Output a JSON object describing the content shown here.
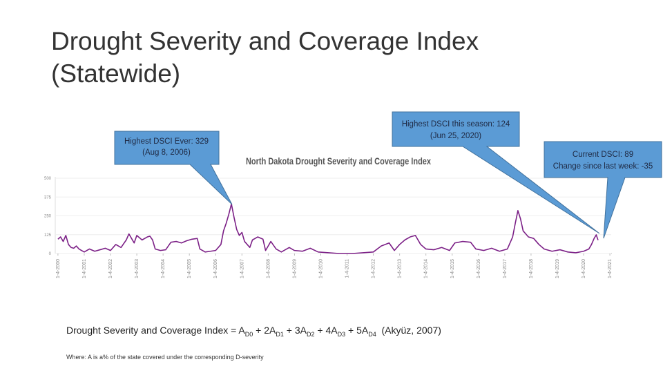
{
  "title": [
    "Drought Severity and Coverage Index",
    "(Statewide)"
  ],
  "callouts": [
    [
      "Highest DSCI Ever: 329",
      "(Aug 8, 2006)"
    ],
    [
      "Highest DSCI this season: 124",
      "(Jun 25, 2020)"
    ],
    [
      "Current DSCI: 89",
      "Change since last week: -35"
    ]
  ],
  "formula": [
    "Drought Severity and Coverage Index = A",
    "D0",
    " + 2A",
    "D1",
    " + 3A",
    "D2",
    " + 4A",
    "D3",
    " + 5A",
    "D4",
    "  (Akyüz, 2007)"
  ],
  "footnote": "Where: A is a% of the state covered under the corresponding D-severity",
  "chart_data": {
    "type": "line",
    "title": "North Dakota Drought Severity and Coverage Index",
    "color": "#7b1f86",
    "x": [
      2000.0,
      2000.1,
      2000.2,
      2000.3,
      2000.4,
      2000.5,
      2000.6,
      2000.7,
      2000.8,
      2000.9,
      2001.0,
      2001.2,
      2001.4,
      2001.6,
      2001.8,
      2002.0,
      2002.2,
      2002.4,
      2002.6,
      2002.7,
      2002.8,
      2002.9,
      2003.0,
      2003.2,
      2003.4,
      2003.5,
      2003.6,
      2003.7,
      2003.9,
      2004.1,
      2004.3,
      2004.5,
      2004.7,
      2004.9,
      2005.1,
      2005.3,
      2005.4,
      2005.6,
      2005.8,
      2006.0,
      2006.2,
      2006.3,
      2006.4,
      2006.5,
      2006.6,
      2006.7,
      2006.8,
      2006.9,
      2007.0,
      2007.1,
      2007.3,
      2007.4,
      2007.6,
      2007.8,
      2007.9,
      2008.1,
      2008.3,
      2008.5,
      2008.8,
      2009.0,
      2009.3,
      2009.6,
      2009.9,
      2010.3,
      2010.7,
      2011.2,
      2011.6,
      2012.0,
      2012.3,
      2012.6,
      2012.8,
      2013.0,
      2013.2,
      2013.4,
      2013.6,
      2013.8,
      2014.0,
      2014.3,
      2014.6,
      2014.9,
      2015.1,
      2015.4,
      2015.7,
      2015.9,
      2016.2,
      2016.5,
      2016.8,
      2017.1,
      2017.3,
      2017.4,
      2017.5,
      2017.6,
      2017.7,
      2017.9,
      2018.1,
      2018.3,
      2018.5,
      2018.8,
      2019.1,
      2019.4,
      2019.7,
      2020.0,
      2020.2,
      2020.3,
      2020.4,
      2020.48,
      2020.55
    ],
    "values": [
      95,
      110,
      80,
      120,
      60,
      40,
      35,
      50,
      30,
      20,
      10,
      30,
      15,
      25,
      35,
      20,
      60,
      40,
      90,
      130,
      100,
      70,
      120,
      90,
      110,
      115,
      90,
      30,
      20,
      25,
      75,
      80,
      70,
      85,
      95,
      100,
      30,
      10,
      15,
      20,
      60,
      150,
      200,
      260,
      329,
      240,
      160,
      120,
      140,
      80,
      40,
      90,
      110,
      95,
      20,
      80,
      30,
      10,
      40,
      20,
      15,
      35,
      10,
      5,
      0,
      0,
      5,
      10,
      50,
      70,
      20,
      60,
      90,
      110,
      120,
      60,
      30,
      25,
      40,
      20,
      70,
      80,
      75,
      30,
      20,
      35,
      15,
      30,
      110,
      200,
      285,
      230,
      150,
      110,
      100,
      60,
      30,
      15,
      25,
      10,
      5,
      15,
      30,
      60,
      100,
      124,
      89
    ],
    "xlim": [
      1999.95,
      2021.05
    ],
    "ylim": [
      0,
      500
    ],
    "yticks": [
      0,
      125,
      250,
      375,
      500
    ],
    "xticks": [
      {
        "value": 2000,
        "label": "1-4-2000"
      },
      {
        "value": 2001,
        "label": "1-4-2001"
      },
      {
        "value": 2002,
        "label": "1-4-2002"
      },
      {
        "value": 2003,
        "label": "1-4-2003"
      },
      {
        "value": 2004,
        "label": "1-4-2004"
      },
      {
        "value": 2005,
        "label": "1-4-2005"
      },
      {
        "value": 2006,
        "label": "1-4-2006"
      },
      {
        "value": 2007,
        "label": "1-4-2007"
      },
      {
        "value": 2008,
        "label": "1-4-2008"
      },
      {
        "value": 2009,
        "label": "1-4-2009"
      },
      {
        "value": 2010,
        "label": "1-4-2010"
      },
      {
        "value": 2011,
        "label": "1-4-2011"
      },
      {
        "value": 2012,
        "label": "1-4-2012"
      },
      {
        "value": 2013,
        "label": "1-4-2013"
      },
      {
        "value": 2014,
        "label": "1-4-2014"
      },
      {
        "value": 2015,
        "label": "1-4-2015"
      },
      {
        "value": 2016,
        "label": "1-4-2016"
      },
      {
        "value": 2017,
        "label": "1-4-2017"
      },
      {
        "value": 2018,
        "label": "1-4-2018"
      },
      {
        "value": 2019,
        "label": "1-4-2019"
      },
      {
        "value": 2020,
        "label": "1-4-2020"
      },
      {
        "value": 2021,
        "label": "1-4-2021"
      }
    ]
  }
}
